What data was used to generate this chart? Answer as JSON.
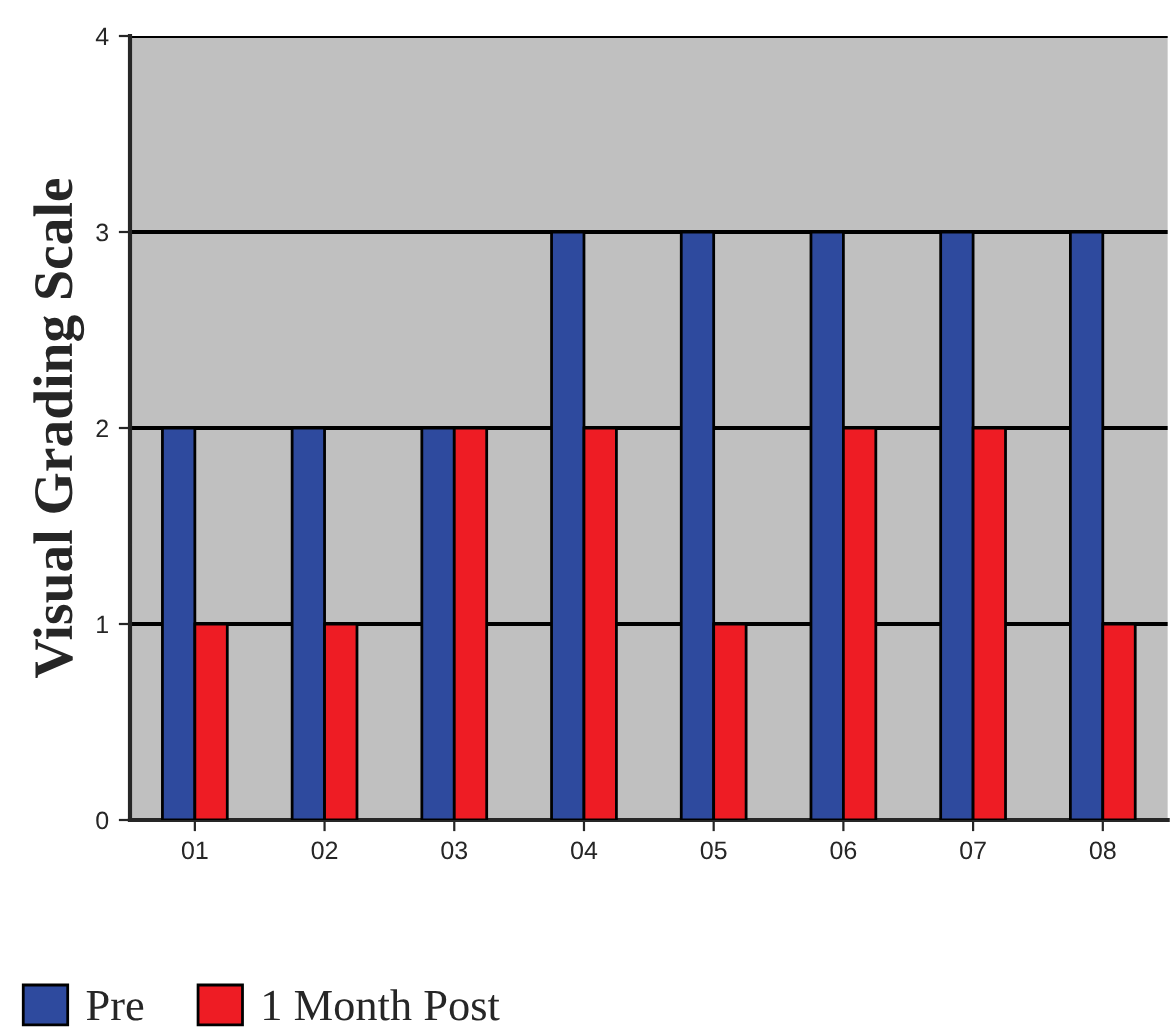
{
  "chart_data": {
    "type": "bar",
    "ylabel": "Visual Grading Scale",
    "categories": [
      "01",
      "02",
      "03",
      "04",
      "05",
      "06",
      "07",
      "08"
    ],
    "series": [
      {
        "name": "Pre",
        "color": "#2e4a9e",
        "values": [
          2,
          2,
          2,
          3,
          3,
          3,
          3,
          3
        ]
      },
      {
        "name": "1 Month Post",
        "color": "#ee1c24",
        "values": [
          1,
          1,
          2,
          2,
          1,
          2,
          2,
          1
        ]
      }
    ],
    "ylim": [
      0,
      4
    ],
    "yticks": [
      0,
      1,
      2,
      3,
      4
    ],
    "grid": "y",
    "legend": "bottom left"
  }
}
